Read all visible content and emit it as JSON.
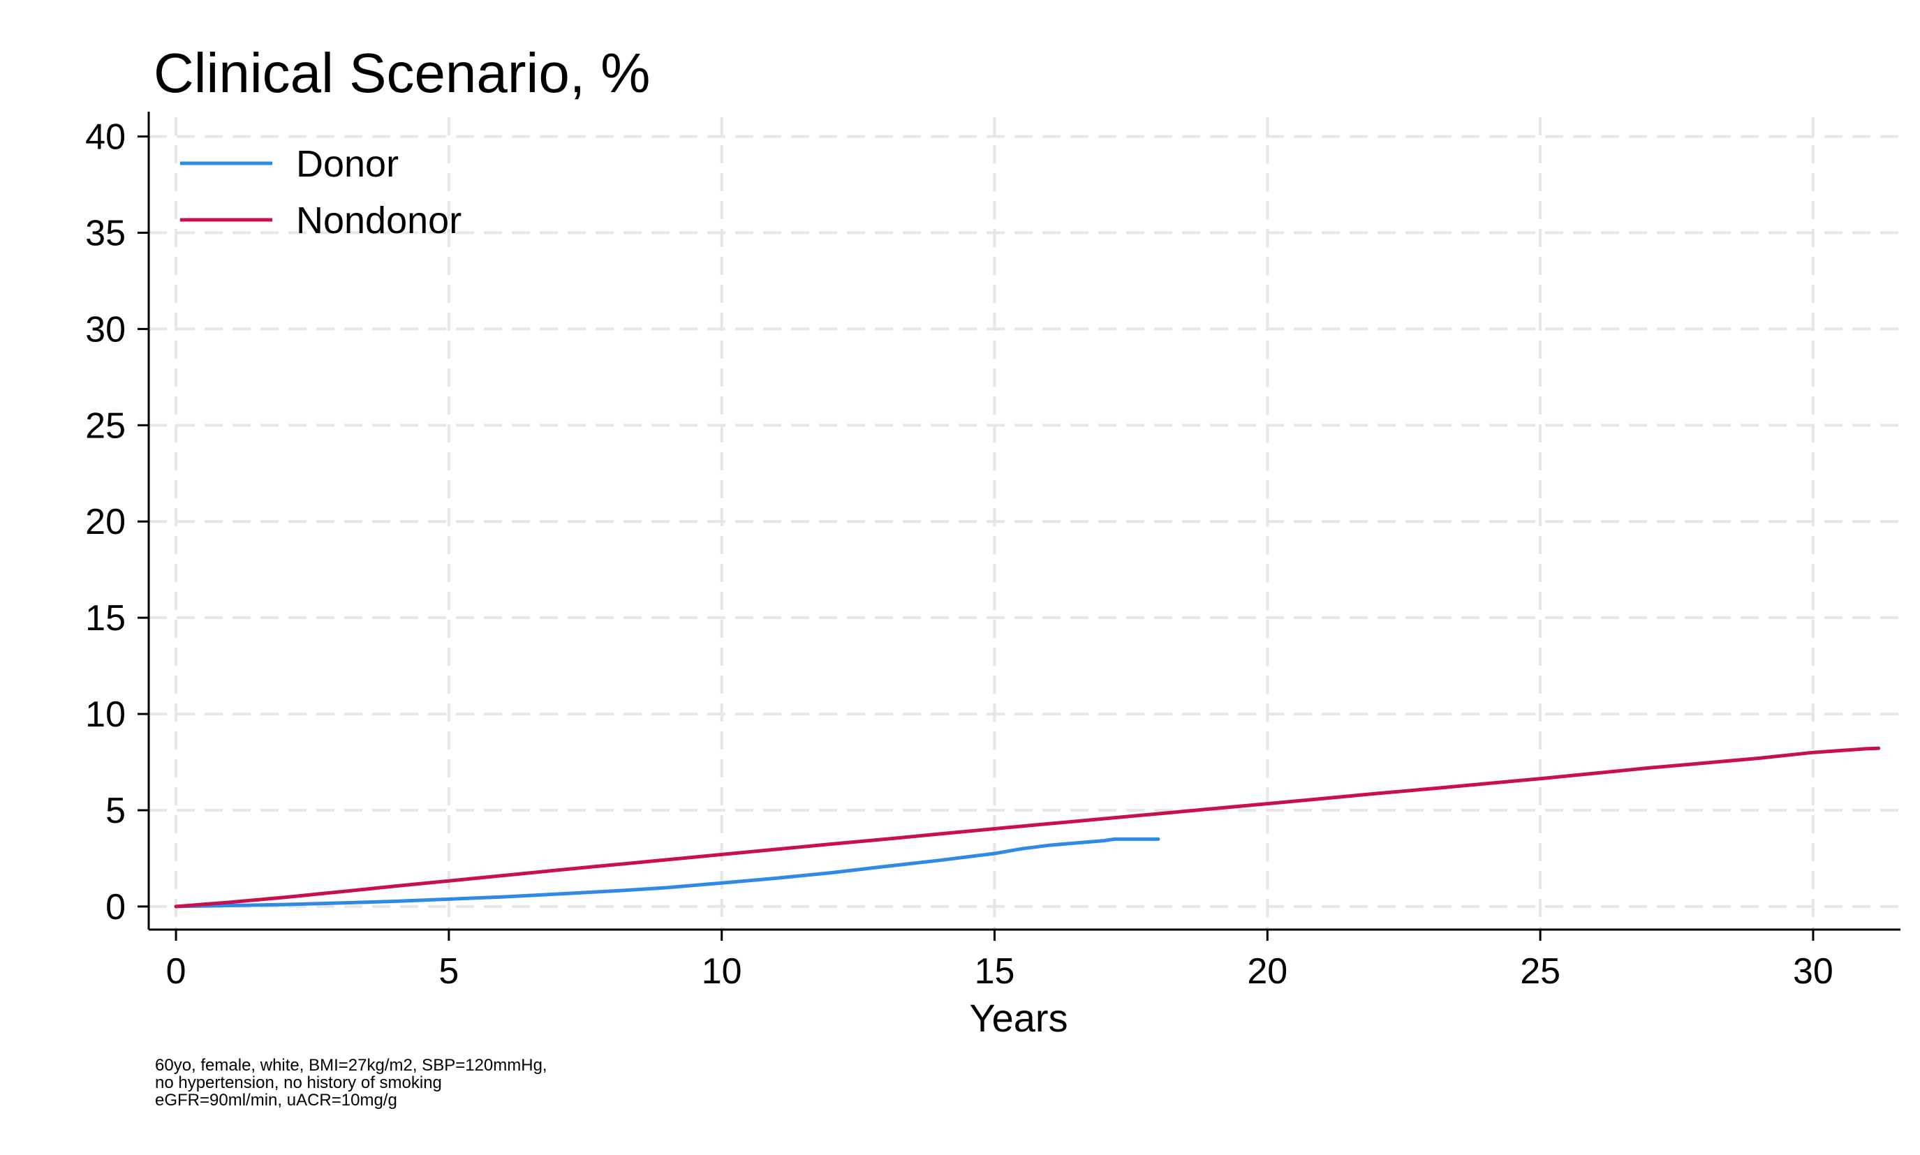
{
  "chart_data": {
    "type": "line",
    "title": "Clinical Scenario, %",
    "xlabel": "Years",
    "ylabel": "",
    "xlim": [
      -0.5,
      31.6
    ],
    "ylim": [
      -1.2,
      41
    ],
    "xticks": [
      0,
      5,
      10,
      15,
      20,
      25,
      30
    ],
    "yticks": [
      0,
      5,
      10,
      15,
      20,
      25,
      30,
      35,
      40
    ],
    "grid": true,
    "legend_position": "top-left",
    "series": [
      {
        "name": "Donor",
        "color": "#2f8ae6",
        "x": [
          0,
          1,
          2,
          3,
          4,
          5,
          6,
          7,
          8,
          9,
          10,
          11,
          12,
          13,
          14,
          15,
          15.5,
          16,
          16.5,
          17,
          17.2,
          18
        ],
        "y": [
          0,
          0.05,
          0.1,
          0.18,
          0.27,
          0.38,
          0.5,
          0.65,
          0.8,
          0.98,
          1.22,
          1.47,
          1.75,
          2.08,
          2.4,
          2.75,
          3.0,
          3.18,
          3.3,
          3.42,
          3.5,
          3.5
        ]
      },
      {
        "name": "Nondonor",
        "color": "#c8104f",
        "x": [
          0,
          1,
          2,
          3,
          4,
          5,
          6,
          7,
          8,
          9,
          10,
          11,
          12,
          13,
          14,
          15,
          16,
          17,
          18,
          19,
          20,
          21,
          22,
          23,
          24,
          25,
          26,
          27,
          28,
          29,
          30,
          31,
          31.2
        ],
        "y": [
          0,
          0.22,
          0.48,
          0.76,
          1.05,
          1.33,
          1.61,
          1.89,
          2.16,
          2.43,
          2.7,
          2.97,
          3.24,
          3.5,
          3.77,
          4.04,
          4.3,
          4.56,
          4.82,
          5.08,
          5.34,
          5.6,
          5.87,
          6.12,
          6.38,
          6.64,
          6.92,
          7.2,
          7.45,
          7.7,
          8.0,
          8.2,
          8.22
        ]
      }
    ],
    "notes": [
      "60yo, female, white, BMI=27kg/m2, SBP=120mmHg,",
      "no hypertension, no history of smoking",
      "eGFR=90ml/min, uACR=10mg/g"
    ]
  }
}
